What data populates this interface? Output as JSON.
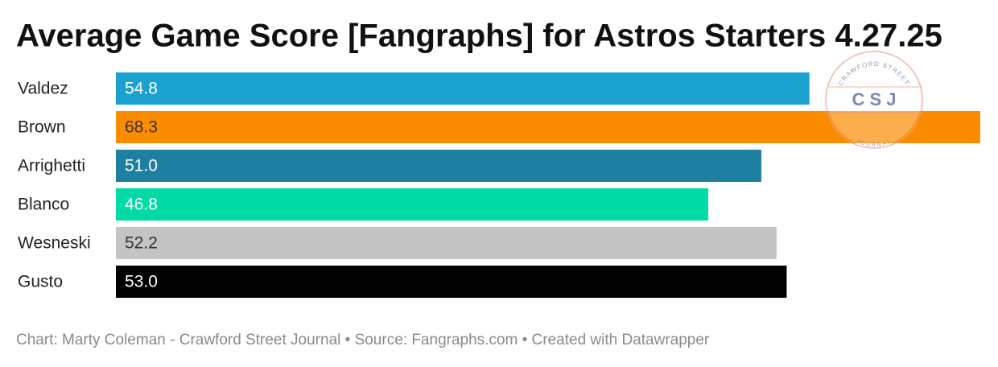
{
  "chart_data": {
    "type": "bar",
    "orientation": "horizontal",
    "title": "Average Game Score [Fangraphs] for Astros Starters 4.27.25",
    "categories": [
      "Valdez",
      "Brown",
      "Arrighetti",
      "Blanco",
      "Wesneski",
      "Gusto"
    ],
    "values": [
      54.8,
      68.3,
      51.0,
      46.8,
      52.2,
      53.0
    ],
    "value_labels": [
      "54.8",
      "68.3",
      "51.0",
      "46.8",
      "52.2",
      "53.0"
    ],
    "colors": [
      "#1aa1d0",
      "#fb8c00",
      "#1f7fa1",
      "#00dba5",
      "#c4c4c4",
      "#000000"
    ],
    "footer": "Chart: Marty Coleman - Crawford Street Journal • Source: Fangraphs.com • Created with Datawrapper"
  },
  "logo": {
    "top": "CRAWFORD STREET",
    "middle": "C S J",
    "bottom": "JOURNAL"
  }
}
